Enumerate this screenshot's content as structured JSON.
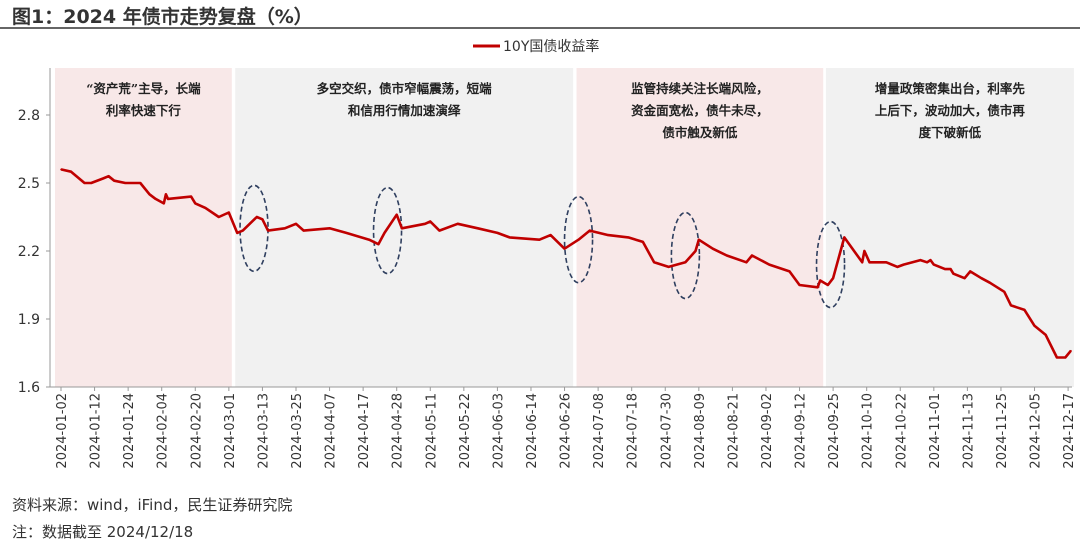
{
  "title": "图1：2024 年债市走势复盘（%）",
  "footer": {
    "source": "资料来源：wind，iFind，民生证券研究院",
    "note": "注：数据截至 2024/12/18"
  },
  "chart_data": {
    "type": "line",
    "title": "",
    "legend": {
      "position": "top-right",
      "entries": [
        "10Y国债收益率"
      ]
    },
    "xlabel": "",
    "ylabel": "",
    "ylim": [
      1.6,
      2.8
    ],
    "yticks": [
      "1.6",
      "1.9",
      "2.2",
      "2.5",
      "2.8"
    ],
    "xticks": [
      "2024-01-02",
      "2024-01-12",
      "2024-01-24",
      "2024-02-04",
      "2024-02-20",
      "2024-03-01",
      "2024-03-13",
      "2024-03-25",
      "2024-04-07",
      "2024-04-17",
      "2024-04-28",
      "2024-05-11",
      "2024-05-22",
      "2024-06-03",
      "2024-06-14",
      "2024-06-26",
      "2024-07-08",
      "2024-07-18",
      "2024-07-30",
      "2024-08-09",
      "2024-08-21",
      "2024-09-02",
      "2024-09-12",
      "2024-09-25",
      "2024-10-10",
      "2024-10-22",
      "2024-11-01",
      "2024-11-13",
      "2024-11-25",
      "2024-12-05",
      "2024-12-17"
    ],
    "grid": false,
    "colors": {
      "line": "#c00000",
      "pink": "#f8e8e8",
      "gray": "#f1f1f1",
      "ellipse": "#2f3f5f"
    },
    "periods": [
      {
        "start": "2024-01-02",
        "end": "2024-03-01",
        "shade": "pink",
        "text": [
          "“资产荒”主导，长端",
          "利率快速下行"
        ]
      },
      {
        "start": "2024-03-04",
        "end": "2024-06-28",
        "shade": "gray",
        "text": [
          "多空交织，债市窄幅震荡，短端",
          "和信用行情加速演绎"
        ]
      },
      {
        "start": "2024-07-01",
        "end": "2024-09-20",
        "shade": "pink",
        "text": [
          "监管持续关注长端风险，",
          "资金面宽松，债牛未尽，",
          "债市触及新低"
        ]
      },
      {
        "start": "2024-09-23",
        "end": "2024-12-18",
        "shade": "gray",
        "text": [
          "增量政策密集出台，利率先",
          "上后下，波动加大，债市再",
          "度下破新低"
        ]
      }
    ],
    "highlights": [
      {
        "date": "2024-03-10",
        "value": 2.3
      },
      {
        "date": "2024-04-25",
        "value": 2.29
      },
      {
        "date": "2024-07-01",
        "value": 2.25
      },
      {
        "date": "2024-08-05",
        "value": 2.18
      },
      {
        "date": "2024-09-24",
        "value": 2.14
      }
    ],
    "series": [
      {
        "name": "10Y国债收益率",
        "x": [
          "2024-01-02",
          "2024-01-05",
          "2024-01-09",
          "2024-01-11",
          "2024-01-15",
          "2024-01-17",
          "2024-01-19",
          "2024-01-23",
          "2024-01-28",
          "2024-01-31",
          "2024-02-02",
          "2024-02-05",
          "2024-02-06",
          "2024-02-07",
          "2024-02-18",
          "2024-02-20",
          "2024-02-23",
          "2024-02-27",
          "2024-03-01",
          "2024-03-04",
          "2024-03-06",
          "2024-03-11",
          "2024-03-13",
          "2024-03-15",
          "2024-03-21",
          "2024-03-25",
          "2024-03-28",
          "2024-04-07",
          "2024-04-12",
          "2024-04-19",
          "2024-04-22",
          "2024-04-24",
          "2024-04-28",
          "2024-04-30",
          "2024-05-09",
          "2024-05-11",
          "2024-05-14",
          "2024-05-20",
          "2024-05-27",
          "2024-06-03",
          "2024-06-07",
          "2024-06-17",
          "2024-06-21",
          "2024-06-26",
          "2024-07-01",
          "2024-07-05",
          "2024-07-11",
          "2024-07-17",
          "2024-07-22",
          "2024-07-26",
          "2024-07-31",
          "2024-08-05",
          "2024-08-08",
          "2024-08-09",
          "2024-08-14",
          "2024-08-19",
          "2024-08-26",
          "2024-08-28",
          "2024-09-03",
          "2024-09-09",
          "2024-09-12",
          "2024-09-19",
          "2024-09-20",
          "2024-09-23",
          "2024-09-25",
          "2024-09-30",
          "2024-10-08",
          "2024-10-09",
          "2024-10-11",
          "2024-10-17",
          "2024-10-21",
          "2024-10-23",
          "2024-10-28",
          "2024-10-30",
          "2024-10-31",
          "2024-11-01",
          "2024-11-05",
          "2024-11-07",
          "2024-11-08",
          "2024-11-12",
          "2024-11-14",
          "2024-11-18",
          "2024-11-21",
          "2024-11-26",
          "2024-11-28",
          "2024-12-02",
          "2024-12-05",
          "2024-12-09",
          "2024-12-13",
          "2024-12-16",
          "2024-12-18"
        ],
        "values": [
          2.56,
          2.55,
          2.5,
          2.5,
          2.52,
          2.53,
          2.51,
          2.5,
          2.5,
          2.45,
          2.43,
          2.41,
          2.45,
          2.43,
          2.44,
          2.41,
          2.39,
          2.35,
          2.37,
          2.28,
          2.29,
          2.35,
          2.34,
          2.29,
          2.3,
          2.32,
          2.29,
          2.3,
          2.28,
          2.25,
          2.23,
          2.28,
          2.36,
          2.3,
          2.32,
          2.33,
          2.29,
          2.32,
          2.3,
          2.28,
          2.26,
          2.25,
          2.27,
          2.21,
          2.25,
          2.29,
          2.27,
          2.26,
          2.24,
          2.15,
          2.13,
          2.15,
          2.2,
          2.25,
          2.21,
          2.18,
          2.15,
          2.18,
          2.14,
          2.11,
          2.05,
          2.04,
          2.07,
          2.05,
          2.08,
          2.26,
          2.15,
          2.2,
          2.15,
          2.15,
          2.13,
          2.14,
          2.16,
          2.15,
          2.16,
          2.14,
          2.12,
          2.12,
          2.1,
          2.08,
          2.11,
          2.08,
          2.06,
          2.02,
          1.96,
          1.94,
          1.87,
          1.83,
          1.73,
          1.73,
          1.76
        ]
      }
    ]
  }
}
